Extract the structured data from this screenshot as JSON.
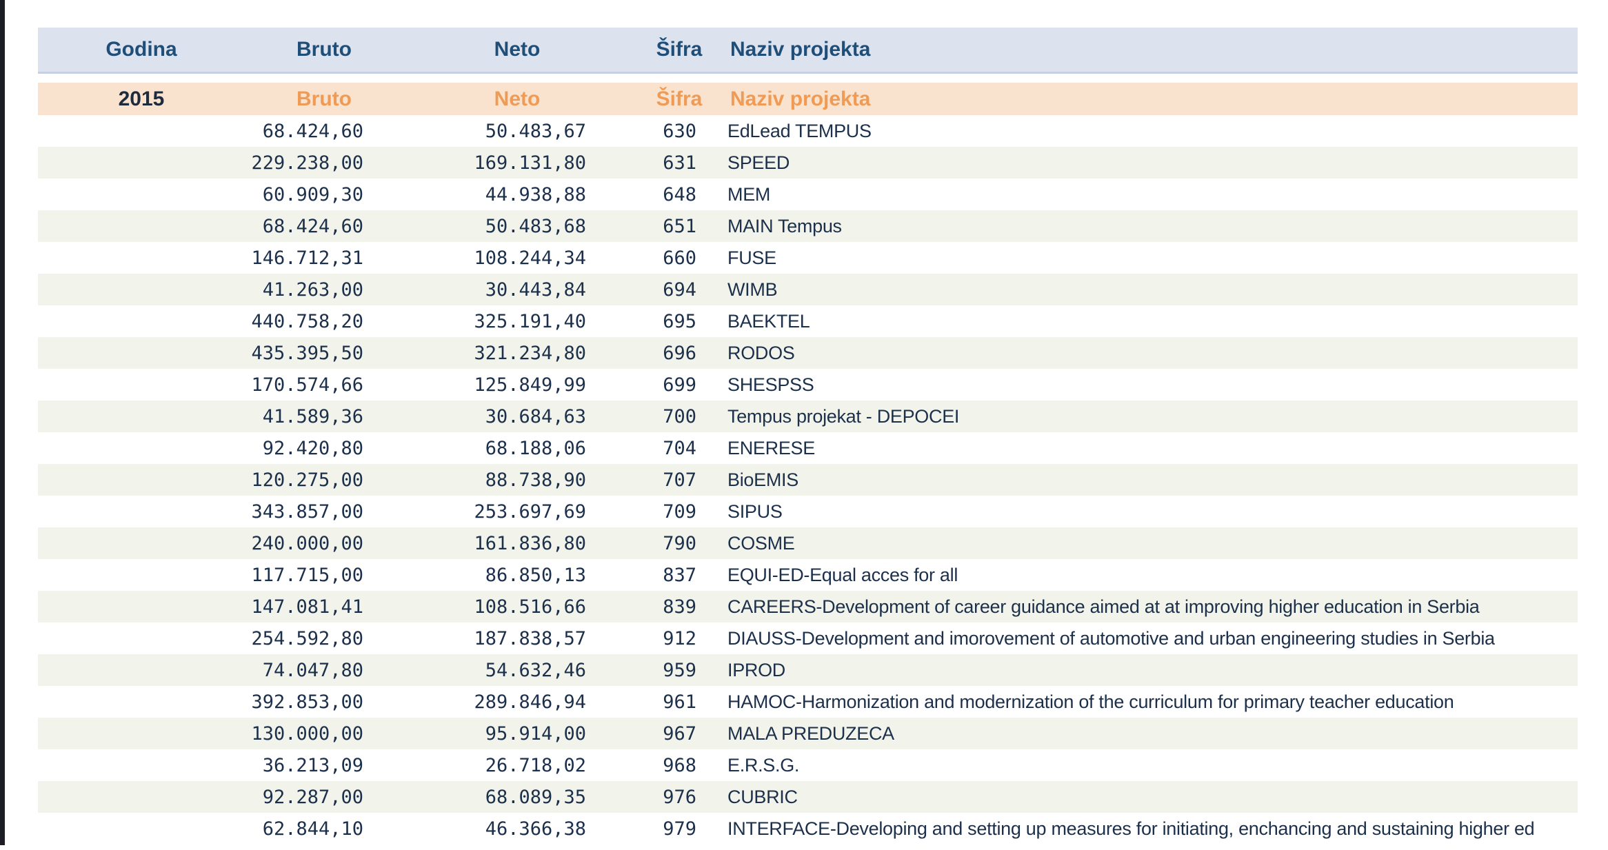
{
  "colors": {
    "header_bg": "#dce3ee",
    "header_border": "#c7d0e3",
    "header_text": "#1f4e79",
    "year_bg": "#f9e3ce",
    "year_text": "#1e2a3e",
    "accent_orange": "#f09b55",
    "alt_row_bg": "#f2f4eb",
    "data_text": "#1c304b",
    "window_edge": "#1d1d26",
    "page_bg": "#ffffff"
  },
  "table": {
    "columns": [
      {
        "key": "godina",
        "label": "Godina"
      },
      {
        "key": "bruto",
        "label": "Bruto"
      },
      {
        "key": "neto",
        "label": "Neto"
      },
      {
        "key": "sifra",
        "label": "Šifra"
      },
      {
        "key": "naziv",
        "label": "Naziv projekta"
      }
    ],
    "year_row": {
      "godina": "2015",
      "bruto": "Bruto",
      "neto": "Neto",
      "sifra": "Šifra",
      "naziv": "Naziv projekta"
    },
    "rows": [
      {
        "bruto": "68.424,60",
        "neto": "50.483,67",
        "sifra": "630",
        "naziv": "EdLead TEMPUS"
      },
      {
        "bruto": "229.238,00",
        "neto": "169.131,80",
        "sifra": "631",
        "naziv": "SPEED"
      },
      {
        "bruto": "60.909,30",
        "neto": "44.938,88",
        "sifra": "648",
        "naziv": "MEM"
      },
      {
        "bruto": "68.424,60",
        "neto": "50.483,68",
        "sifra": "651",
        "naziv": "MAIN Tempus"
      },
      {
        "bruto": "146.712,31",
        "neto": "108.244,34",
        "sifra": "660",
        "naziv": "FUSE"
      },
      {
        "bruto": "41.263,00",
        "neto": "30.443,84",
        "sifra": "694",
        "naziv": "WIMB"
      },
      {
        "bruto": "440.758,20",
        "neto": "325.191,40",
        "sifra": "695",
        "naziv": "BAEKTEL"
      },
      {
        "bruto": "435.395,50",
        "neto": "321.234,80",
        "sifra": "696",
        "naziv": "RODOS"
      },
      {
        "bruto": "170.574,66",
        "neto": "125.849,99",
        "sifra": "699",
        "naziv": "SHESPSS"
      },
      {
        "bruto": "41.589,36",
        "neto": "30.684,63",
        "sifra": "700",
        "naziv": "Tempus projekat - DEPOCEI"
      },
      {
        "bruto": "92.420,80",
        "neto": "68.188,06",
        "sifra": "704",
        "naziv": "ENERESE"
      },
      {
        "bruto": "120.275,00",
        "neto": "88.738,90",
        "sifra": "707",
        "naziv": "BioEMIS"
      },
      {
        "bruto": "343.857,00",
        "neto": "253.697,69",
        "sifra": "709",
        "naziv": "SIPUS"
      },
      {
        "bruto": "240.000,00",
        "neto": "161.836,80",
        "sifra": "790",
        "naziv": "COSME"
      },
      {
        "bruto": "117.715,00",
        "neto": "86.850,13",
        "sifra": "837",
        "naziv": "EQUI-ED-Equal acces for all"
      },
      {
        "bruto": "147.081,41",
        "neto": "108.516,66",
        "sifra": "839",
        "naziv": "CAREERS-Development of career guidance aimed at at improving higher education in Serbia"
      },
      {
        "bruto": "254.592,80",
        "neto": "187.838,57",
        "sifra": "912",
        "naziv": "DIAUSS-Development and imorovement of automotive and urban engineering studies in Serbia"
      },
      {
        "bruto": "74.047,80",
        "neto": "54.632,46",
        "sifra": "959",
        "naziv": "IPROD"
      },
      {
        "bruto": "392.853,00",
        "neto": "289.846,94",
        "sifra": "961",
        "naziv": "HAMOC-Harmonization and modernization of the curriculum for primary teacher education"
      },
      {
        "bruto": "130.000,00",
        "neto": "95.914,00",
        "sifra": "967",
        "naziv": "MALA PREDUZECA"
      },
      {
        "bruto": "36.213,09",
        "neto": "26.718,02",
        "sifra": "968",
        "naziv": "E.R.S.G."
      },
      {
        "bruto": "92.287,00",
        "neto": "68.089,35",
        "sifra": "976",
        "naziv": "CUBRIC"
      },
      {
        "bruto": "62.844,10",
        "neto": "46.366,38",
        "sifra": "979",
        "naziv": "INTERFACE-Developing and setting up measures for initiating, enchancing and sustaining higher ed"
      }
    ]
  }
}
